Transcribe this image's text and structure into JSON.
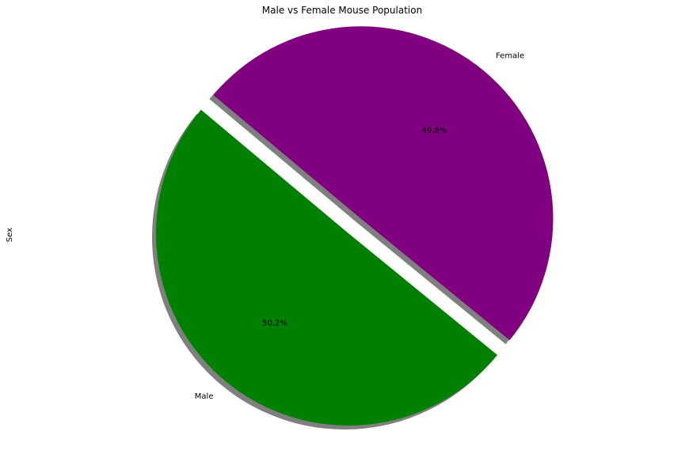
{
  "chart_data": {
    "type": "pie",
    "title": "Male vs Female Mouse Population",
    "ylabel": "Sex",
    "slices": [
      {
        "label": "Male",
        "value": 50.2,
        "percent_label": "50.2%",
        "color": "#008000",
        "explode": 0.0
      },
      {
        "label": "Female",
        "value": 49.8,
        "percent_label": "49.8%",
        "color": "#800080",
        "explode": 0.1
      }
    ],
    "start_angle_deg": 140,
    "shadow": true
  }
}
